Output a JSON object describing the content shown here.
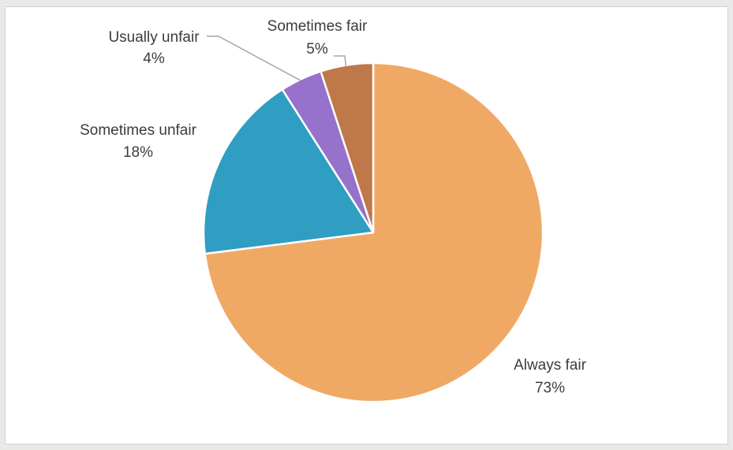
{
  "chart_data": {
    "type": "pie",
    "title": "",
    "start_angle_deg": 0,
    "direction": "clockwise",
    "slices": [
      {
        "label": "Always fair",
        "percent_label": "73%",
        "value": 73,
        "color": "#f0a965"
      },
      {
        "label": "Sometimes unfair",
        "percent_label": "18%",
        "value": 18,
        "color": "#2f9ec2"
      },
      {
        "label": "Usually unfair",
        "percent_label": "4%",
        "value": 4,
        "color": "#9672cc"
      },
      {
        "label": "Sometimes fair",
        "percent_label": "5%",
        "value": 5,
        "color": "#bf784a"
      }
    ],
    "legend": "none"
  }
}
